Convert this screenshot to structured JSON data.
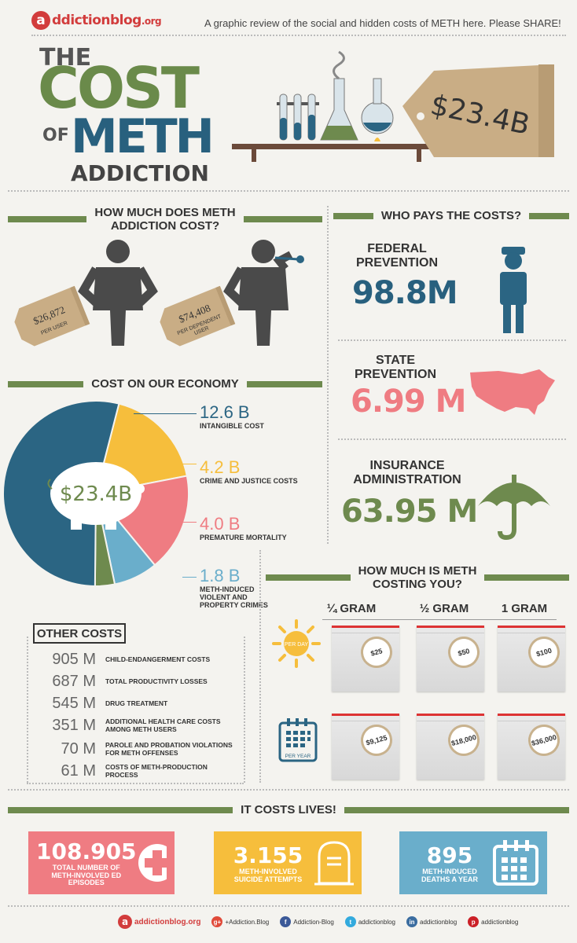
{
  "brand": {
    "logo_letter": "a",
    "logo_text": "ddictionblog",
    "logo_suffix": ".org"
  },
  "tagline": "A graphic review of the social and hidden costs of METH here. Please SHARE!",
  "title": {
    "the": "THE",
    "cost": "COST",
    "of": "OF",
    "meth": "METH",
    "addiction": "ADDICTION"
  },
  "hero_tag": "$23.4B",
  "section_cost": {
    "header_line1": "HOW MUCH DOES METH",
    "header_line2": "ADDICTION COST?",
    "per_user_value": "$26,872",
    "per_user_label": "PER USER",
    "per_dependent_value": "$74,408",
    "per_dependent_label_1": "PER DEPENDENT",
    "per_dependent_label_2": "USER"
  },
  "section_who_pays": {
    "header": "WHO PAYS THE COSTS?",
    "payers": [
      {
        "title_1": "FEDERAL",
        "title_2": "PREVENTION",
        "value": "98.8M"
      },
      {
        "title_1": "STATE",
        "title_2": "PREVENTION",
        "value": "6.99 M"
      },
      {
        "title_1": "INSURANCE",
        "title_2": "ADMINISTRATION",
        "value": "63.95 M"
      }
    ]
  },
  "section_economy": {
    "header": "COST ON OUR ECONOMY",
    "center_label": "$23.4B"
  },
  "chart_data": {
    "type": "pie",
    "title": "COST ON OUR ECONOMY",
    "center_label": "$23.4B",
    "slices": [
      {
        "label": "INTANGIBLE COST",
        "value": 12.6,
        "display": "12.6 B",
        "color": "#2b6583"
      },
      {
        "label": "CRIME AND JUSTICE COSTS",
        "value": 4.2,
        "display": "4.2 B",
        "color": "#f6be3c"
      },
      {
        "label": "PREMATURE MORTALITY",
        "value": 4.0,
        "display": "4.0 B",
        "color": "#ef7c82"
      },
      {
        "label": "METH-INDUCED VIOLENT AND PROPERTY CRIMES",
        "value": 1.8,
        "display": "1.8 B",
        "color": "#6aaecb"
      },
      {
        "label": "",
        "value": 0.8,
        "display": "",
        "color": "#6e8a4e"
      }
    ]
  },
  "econ_items": [
    {
      "value": "12.6 B",
      "label_1": "INTANGIBLE COST",
      "label_2": "",
      "label_3": "",
      "color": "#2b6583"
    },
    {
      "value": "4.2 B",
      "label_1": "CRIME AND JUSTICE COSTS",
      "label_2": "",
      "label_3": "",
      "color": "#f6be3c"
    },
    {
      "value": "4.0 B",
      "label_1": "PREMATURE MORTALITY",
      "label_2": "",
      "label_3": "",
      "color": "#ef7c82"
    },
    {
      "value": "1.8 B",
      "label_1": "METH-INDUCED",
      "label_2": "VIOLENT AND",
      "label_3": "PROPERTY CRIMES",
      "color": "#6aaecb"
    }
  ],
  "other_costs": {
    "header": "OTHER COSTS",
    "items": [
      {
        "value": "905 M",
        "label_1": "CHILD-ENDANGERMENT COSTS",
        "label_2": ""
      },
      {
        "value": "687 M",
        "label_1": "TOTAL PRODUCTIVITY LOSSES",
        "label_2": ""
      },
      {
        "value": "545 M",
        "label_1": "DRUG TREATMENT",
        "label_2": ""
      },
      {
        "value": "351 M",
        "label_1": "ADDITIONAL HEALTH CARE COSTS",
        "label_2": "AMONG METH USERS"
      },
      {
        "value": "70 M",
        "label_1": "PAROLE AND PROBATION VIOLATIONS",
        "label_2": "FOR METH OFFENSES"
      },
      {
        "value": "61 M",
        "label_1": "COSTS OF METH-PRODUCTION PROCESS",
        "label_2": ""
      }
    ]
  },
  "section_costing_you": {
    "header_line1": "HOW MUCH IS METH",
    "header_line2": "COSTING YOU?",
    "grams": [
      "¼ GRAM",
      "½ GRAM",
      "1 GRAM"
    ],
    "per_day_label": "PER DAY",
    "per_year_label": "PER YEAR",
    "per_day_prices": [
      "$25",
      "$50",
      "$100"
    ],
    "per_year_prices": [
      "$9,125",
      "$18,000",
      "$36,000"
    ]
  },
  "section_lives": {
    "header": "IT COSTS LIVES!",
    "items": [
      {
        "value": "108.905",
        "label_1": "TOTAL NUMBER OF",
        "label_2": "METH-INVOLVED ED",
        "label_3": "EPISODES",
        "color": "#ef7c82"
      },
      {
        "value": "3.155",
        "label_1": "METH-INVOLVED",
        "label_2": "SUICIDE ATTEMPTS",
        "label_3": "",
        "color": "#f6be3c"
      },
      {
        "value": "895",
        "label_1": "METH-INDUCED",
        "label_2": "DEATHS A YEAR",
        "label_3": "",
        "color": "#6aaecb"
      }
    ]
  },
  "footer": {
    "logo_letter": "a",
    "logo_text": "addictionblog.org",
    "social": [
      {
        "icon": "google-plus-icon",
        "glyph": "g+",
        "label": "+Addiction.Blog",
        "color": "#e04a39"
      },
      {
        "icon": "facebook-icon",
        "glyph": "f",
        "label": "Addiction-Blog",
        "color": "#3b5998"
      },
      {
        "icon": "twitter-icon",
        "glyph": "t",
        "label": "addictionblog",
        "color": "#33aadd"
      },
      {
        "icon": "linkedin-icon",
        "glyph": "in",
        "label": "addictionblog",
        "color": "#3b6da0"
      },
      {
        "icon": "pinterest-icon",
        "glyph": "p",
        "label": "addictionblog",
        "color": "#cb2027"
      }
    ]
  }
}
